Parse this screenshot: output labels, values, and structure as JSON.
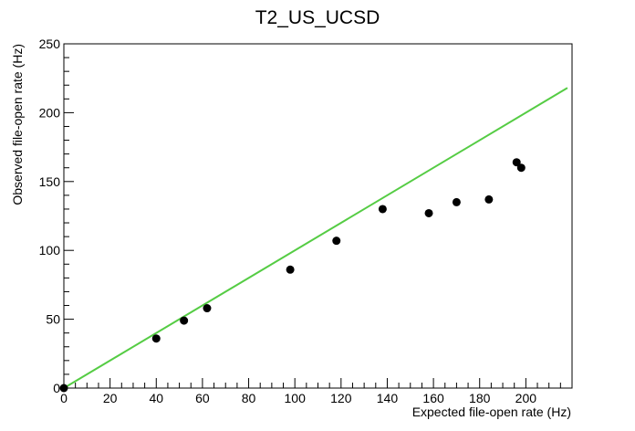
{
  "chart_data": {
    "type": "scatter",
    "title": "T2_US_UCSD",
    "xlabel": "Expected file-open rate (Hz)",
    "ylabel": "Observed file-open rate (Hz)",
    "xlim": [
      0,
      220
    ],
    "ylim": [
      0,
      250
    ],
    "x_ticks": [
      0,
      20,
      40,
      60,
      80,
      100,
      120,
      140,
      160,
      180,
      200
    ],
    "y_ticks": [
      0,
      50,
      100,
      150,
      200,
      250
    ],
    "grid": false,
    "legend": "none",
    "points": [
      {
        "x": 0,
        "y": 0
      },
      {
        "x": 40,
        "y": 36
      },
      {
        "x": 52,
        "y": 49
      },
      {
        "x": 62,
        "y": 58
      },
      {
        "x": 98,
        "y": 86
      },
      {
        "x": 118,
        "y": 107
      },
      {
        "x": 138,
        "y": 130
      },
      {
        "x": 158,
        "y": 127
      },
      {
        "x": 170,
        "y": 135
      },
      {
        "x": 184,
        "y": 137
      },
      {
        "x": 196,
        "y": 164
      },
      {
        "x": 198,
        "y": 160
      }
    ],
    "reference_line": {
      "x": [
        0,
        218
      ],
      "y": [
        0,
        218
      ]
    },
    "colors": {
      "points": "#000000",
      "line": "#55cc44",
      "axes": "#000000"
    }
  }
}
